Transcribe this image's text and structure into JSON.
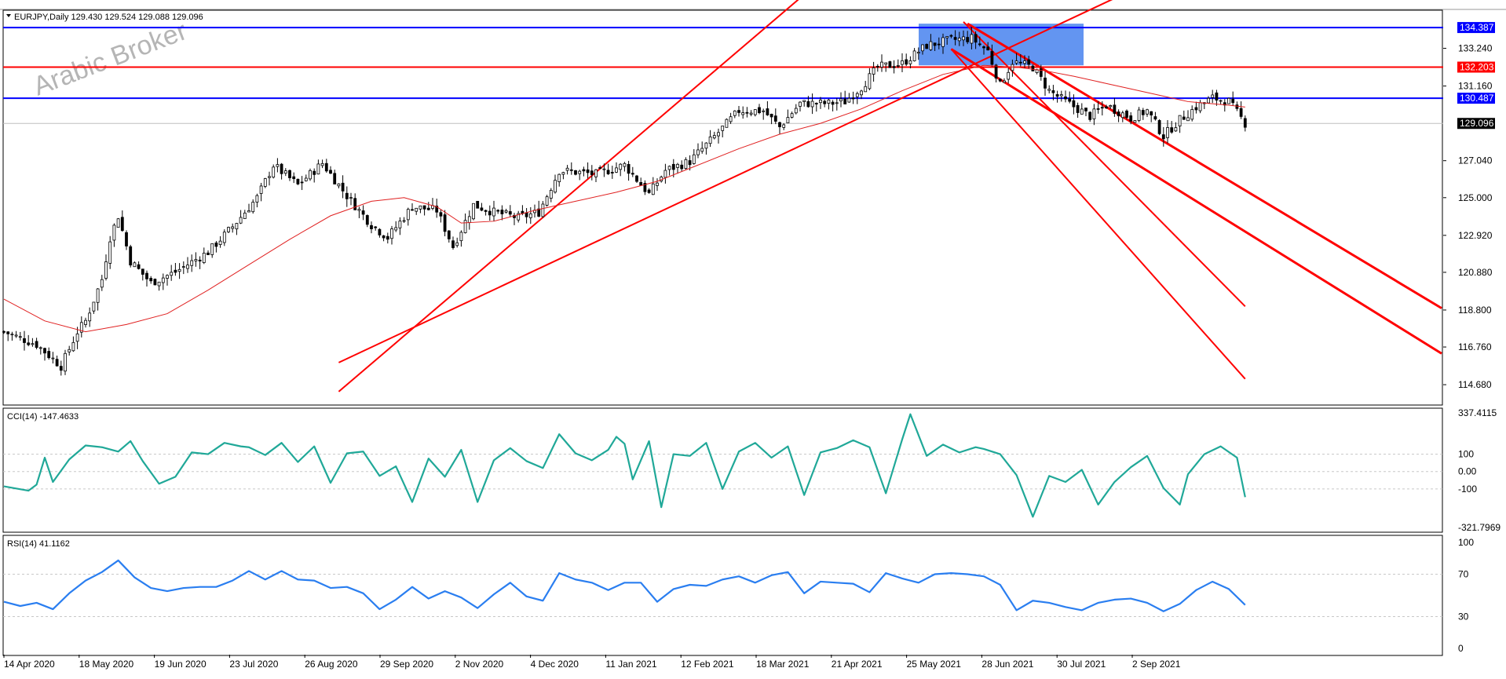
{
  "window": {
    "symbol_header": "EURJPY,Daily  129.430 129.524 129.088 129.096",
    "watermark": "Arabic Broker"
  },
  "colors": {
    "candle": "#000000",
    "ma": "#e02020",
    "trendline": "#ff0000",
    "level_blue": "#0000ff",
    "level_red": "#ff0000",
    "zone": "#5b8ff0",
    "cci": "#20a898",
    "rsi": "#2a7ef0",
    "grid": "#c8c8c8"
  },
  "chart_data": [
    {
      "type": "candlestick",
      "title": "EURJPY,Daily",
      "ohlc_last": {
        "open": 129.43,
        "high": 129.524,
        "low": 129.088,
        "close": 129.096
      },
      "ylim": [
        113.6,
        135.3
      ],
      "yticks": [
        "133.240",
        "131.160",
        "127.040",
        "125.000",
        "122.920",
        "120.880",
        "118.800",
        "116.760",
        "114.680"
      ],
      "x_labels": [
        "14 Apr 2020",
        "18 May 2020",
        "19 Jun 2020",
        "23 Jul 2020",
        "26 Aug 2020",
        "29 Sep 2020",
        "2 Nov 2020",
        "4 Dec 2020",
        "11 Jan 2021",
        "12 Feb 2021",
        "18 Mar 2021",
        "21 Apr 2021",
        "25 May 2021",
        "28 Jun 2021",
        "30 Jul 2021",
        "2 Sep 2021"
      ],
      "level_tags": [
        {
          "label": "134.387",
          "value": 134.387,
          "color": "#0000ff"
        },
        {
          "label": "132.203",
          "value": 132.203,
          "color": "#ff0000"
        },
        {
          "label": "130.487",
          "value": 130.487,
          "color": "#0000ff"
        },
        {
          "label": "129.096",
          "value": 129.096,
          "color": "#000000"
        }
      ],
      "close_path": [
        [
          0,
          117.6
        ],
        [
          8,
          116.9
        ],
        [
          14,
          115.7
        ],
        [
          18,
          117.6
        ],
        [
          20,
          118.2
        ],
        [
          24,
          120.5
        ],
        [
          26,
          122.8
        ],
        [
          28,
          124.0
        ],
        [
          31,
          121.5
        ],
        [
          36,
          120.3
        ],
        [
          42,
          120.9
        ],
        [
          50,
          122.0
        ],
        [
          56,
          123.4
        ],
        [
          62,
          125.0
        ],
        [
          66,
          126.8
        ],
        [
          72,
          125.7
        ],
        [
          78,
          126.9
        ],
        [
          84,
          125.1
        ],
        [
          90,
          123.5
        ],
        [
          94,
          122.8
        ],
        [
          100,
          124.5
        ],
        [
          106,
          124.3
        ],
        [
          110,
          122.3
        ],
        [
          115,
          124.6
        ],
        [
          120,
          124.2
        ],
        [
          126,
          123.9
        ],
        [
          131,
          124.2
        ],
        [
          136,
          126.5
        ],
        [
          145,
          126.3
        ],
        [
          152,
          126.8
        ],
        [
          158,
          125.2
        ],
        [
          162,
          126.5
        ],
        [
          168,
          127.0
        ],
        [
          175,
          128.6
        ],
        [
          180,
          129.8
        ],
        [
          186,
          129.8
        ],
        [
          190,
          128.9
        ],
        [
          195,
          130.2
        ],
        [
          202,
          130.2
        ],
        [
          206,
          130.3
        ],
        [
          210,
          131.1
        ],
        [
          214,
          132.2
        ],
        [
          220,
          132.4
        ],
        [
          226,
          133.4
        ],
        [
          232,
          133.7
        ],
        [
          237,
          133.8
        ],
        [
          241,
          133.1
        ],
        [
          244,
          131.2
        ],
        [
          247,
          132.5
        ],
        [
          252,
          132.2
        ],
        [
          256,
          130.9
        ],
        [
          260,
          130.3
        ],
        [
          266,
          129.5
        ],
        [
          270,
          130.1
        ],
        [
          276,
          129.4
        ],
        [
          280,
          129.8
        ],
        [
          284,
          128.4
        ],
        [
          288,
          129.3
        ],
        [
          292,
          130.0
        ],
        [
          296,
          130.5
        ],
        [
          300,
          130.3
        ],
        [
          304,
          129.1
        ]
      ],
      "ma_path": [
        [
          0,
          119.4
        ],
        [
          10,
          118.2
        ],
        [
          20,
          117.6
        ],
        [
          30,
          118.0
        ],
        [
          40,
          118.6
        ],
        [
          50,
          119.9
        ],
        [
          60,
          121.3
        ],
        [
          70,
          122.7
        ],
        [
          80,
          124.0
        ],
        [
          90,
          124.8
        ],
        [
          98,
          125.0
        ],
        [
          106,
          124.5
        ],
        [
          112,
          123.6
        ],
        [
          120,
          123.7
        ],
        [
          130,
          124.3
        ],
        [
          140,
          124.8
        ],
        [
          150,
          125.3
        ],
        [
          160,
          125.9
        ],
        [
          170,
          126.8
        ],
        [
          180,
          127.7
        ],
        [
          190,
          128.5
        ],
        [
          200,
          129.1
        ],
        [
          210,
          129.9
        ],
        [
          220,
          130.9
        ],
        [
          230,
          131.8
        ],
        [
          240,
          132.3
        ],
        [
          248,
          132.2
        ],
        [
          255,
          132.0
        ],
        [
          262,
          131.7
        ],
        [
          270,
          131.3
        ],
        [
          280,
          130.8
        ],
        [
          290,
          130.3
        ],
        [
          300,
          130.1
        ],
        [
          304,
          130.0
        ]
      ]
    },
    {
      "type": "line",
      "title": "CCI(14) -147.4633",
      "ylim": [
        -321.7969,
        337.4115
      ],
      "yticks": [
        "337.4115",
        "100",
        "0.00",
        "-100",
        "-321.7969"
      ],
      "series": [
        {
          "name": "CCI(14)",
          "last": -147.4633
        }
      ],
      "path": [
        [
          0,
          -85
        ],
        [
          6,
          -110
        ],
        [
          8,
          -75
        ],
        [
          10,
          80
        ],
        [
          12,
          -60
        ],
        [
          16,
          70
        ],
        [
          20,
          150
        ],
        [
          24,
          140
        ],
        [
          28,
          115
        ],
        [
          31,
          175
        ],
        [
          34,
          60
        ],
        [
          38,
          -70
        ],
        [
          42,
          -30
        ],
        [
          46,
          110
        ],
        [
          50,
          100
        ],
        [
          54,
          165
        ],
        [
          58,
          145
        ],
        [
          60,
          140
        ],
        [
          64,
          95
        ],
        [
          68,
          165
        ],
        [
          72,
          55
        ],
        [
          76,
          145
        ],
        [
          80,
          -65
        ],
        [
          84,
          105
        ],
        [
          88,
          115
        ],
        [
          92,
          -25
        ],
        [
          96,
          30
        ],
        [
          100,
          -175
        ],
        [
          104,
          75
        ],
        [
          108,
          -30
        ],
        [
          112,
          125
        ],
        [
          116,
          -175
        ],
        [
          120,
          65
        ],
        [
          124,
          135
        ],
        [
          128,
          60
        ],
        [
          132,
          20
        ],
        [
          136,
          215
        ],
        [
          140,
          105
        ],
        [
          144,
          65
        ],
        [
          148,
          125
        ],
        [
          150,
          200
        ],
        [
          152,
          160
        ],
        [
          154,
          -45
        ],
        [
          158,
          175
        ],
        [
          161,
          -205
        ],
        [
          164,
          100
        ],
        [
          168,
          90
        ],
        [
          172,
          165
        ],
        [
          176,
          -100
        ],
        [
          180,
          115
        ],
        [
          184,
          165
        ],
        [
          188,
          80
        ],
        [
          192,
          145
        ],
        [
          196,
          -135
        ],
        [
          200,
          110
        ],
        [
          204,
          135
        ],
        [
          208,
          180
        ],
        [
          212,
          140
        ],
        [
          216,
          -125
        ],
        [
          220,
          185
        ],
        [
          222,
          330
        ],
        [
          226,
          90
        ],
        [
          230,
          155
        ],
        [
          234,
          110
        ],
        [
          238,
          140
        ],
        [
          240,
          130
        ],
        [
          244,
          100
        ],
        [
          248,
          -20
        ],
        [
          252,
          -260
        ],
        [
          256,
          -25
        ],
        [
          260,
          -60
        ],
        [
          264,
          10
        ],
        [
          268,
          -190
        ],
        [
          272,
          -60
        ],
        [
          276,
          25
        ],
        [
          280,
          90
        ],
        [
          284,
          -95
        ],
        [
          288,
          -190
        ],
        [
          290,
          -15
        ],
        [
          294,
          100
        ],
        [
          298,
          145
        ],
        [
          302,
          80
        ],
        [
          304,
          -147
        ]
      ]
    },
    {
      "type": "line",
      "title": "RSI(14) 41.1162",
      "ylim": [
        0,
        100
      ],
      "yticks": [
        "100",
        "70",
        "30",
        "0"
      ],
      "series": [
        {
          "name": "RSI(14)",
          "last": 41.1162
        }
      ],
      "path": [
        [
          0,
          44
        ],
        [
          4,
          40
        ],
        [
          8,
          43
        ],
        [
          12,
          37
        ],
        [
          16,
          52
        ],
        [
          20,
          64
        ],
        [
          24,
          72
        ],
        [
          28,
          83
        ],
        [
          32,
          67
        ],
        [
          36,
          57
        ],
        [
          40,
          54
        ],
        [
          44,
          57
        ],
        [
          48,
          58
        ],
        [
          52,
          58
        ],
        [
          56,
          64
        ],
        [
          60,
          73
        ],
        [
          64,
          65
        ],
        [
          68,
          73
        ],
        [
          72,
          65
        ],
        [
          76,
          64
        ],
        [
          80,
          57
        ],
        [
          84,
          58
        ],
        [
          88,
          52
        ],
        [
          92,
          37
        ],
        [
          96,
          46
        ],
        [
          100,
          58
        ],
        [
          104,
          47
        ],
        [
          108,
          54
        ],
        [
          112,
          48
        ],
        [
          116,
          38
        ],
        [
          120,
          51
        ],
        [
          124,
          62
        ],
        [
          128,
          49
        ],
        [
          132,
          45
        ],
        [
          136,
          71
        ],
        [
          140,
          65
        ],
        [
          144,
          62
        ],
        [
          148,
          55
        ],
        [
          152,
          62
        ],
        [
          156,
          62
        ],
        [
          160,
          44
        ],
        [
          164,
          56
        ],
        [
          168,
          60
        ],
        [
          172,
          59
        ],
        [
          176,
          65
        ],
        [
          180,
          68
        ],
        [
          184,
          62
        ],
        [
          188,
          69
        ],
        [
          192,
          72
        ],
        [
          196,
          52
        ],
        [
          200,
          63
        ],
        [
          204,
          62
        ],
        [
          208,
          61
        ],
        [
          212,
          53
        ],
        [
          216,
          71
        ],
        [
          220,
          66
        ],
        [
          224,
          62
        ],
        [
          228,
          70
        ],
        [
          232,
          71
        ],
        [
          236,
          70
        ],
        [
          240,
          68
        ],
        [
          244,
          60
        ],
        [
          248,
          36
        ],
        [
          252,
          45
        ],
        [
          256,
          43
        ],
        [
          260,
          39
        ],
        [
          264,
          36
        ],
        [
          268,
          43
        ],
        [
          272,
          46
        ],
        [
          276,
          47
        ],
        [
          280,
          43
        ],
        [
          284,
          35
        ],
        [
          288,
          42
        ],
        [
          292,
          55
        ],
        [
          296,
          63
        ],
        [
          300,
          56
        ],
        [
          304,
          41
        ]
      ]
    }
  ]
}
